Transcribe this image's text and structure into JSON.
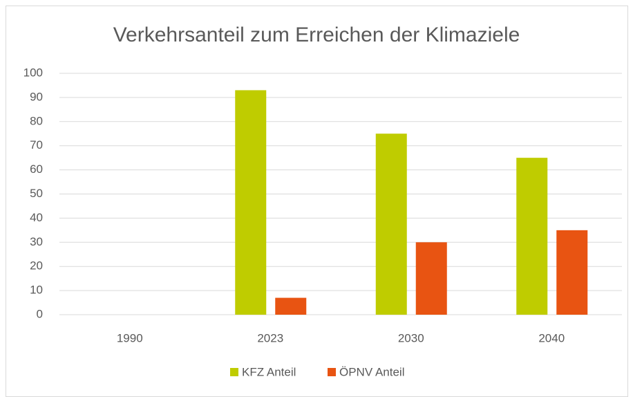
{
  "chart_data": {
    "type": "bar",
    "title": "Verkehrsanteil zum Erreichen der Klimaziele",
    "categories": [
      "1990",
      "2023",
      "2030",
      "2040"
    ],
    "series": [
      {
        "name": "KFZ Anteil",
        "color": "#bfcc00",
        "values": [
          null,
          93,
          75,
          65
        ]
      },
      {
        "name": "ÖPNV Anteil",
        "color": "#e85412",
        "values": [
          null,
          7,
          30,
          35
        ]
      }
    ],
    "ylim": [
      0,
      100
    ],
    "yticks": [
      0,
      10,
      20,
      30,
      40,
      50,
      60,
      70,
      80,
      90,
      100
    ],
    "grid": true,
    "legend": "bottom"
  }
}
